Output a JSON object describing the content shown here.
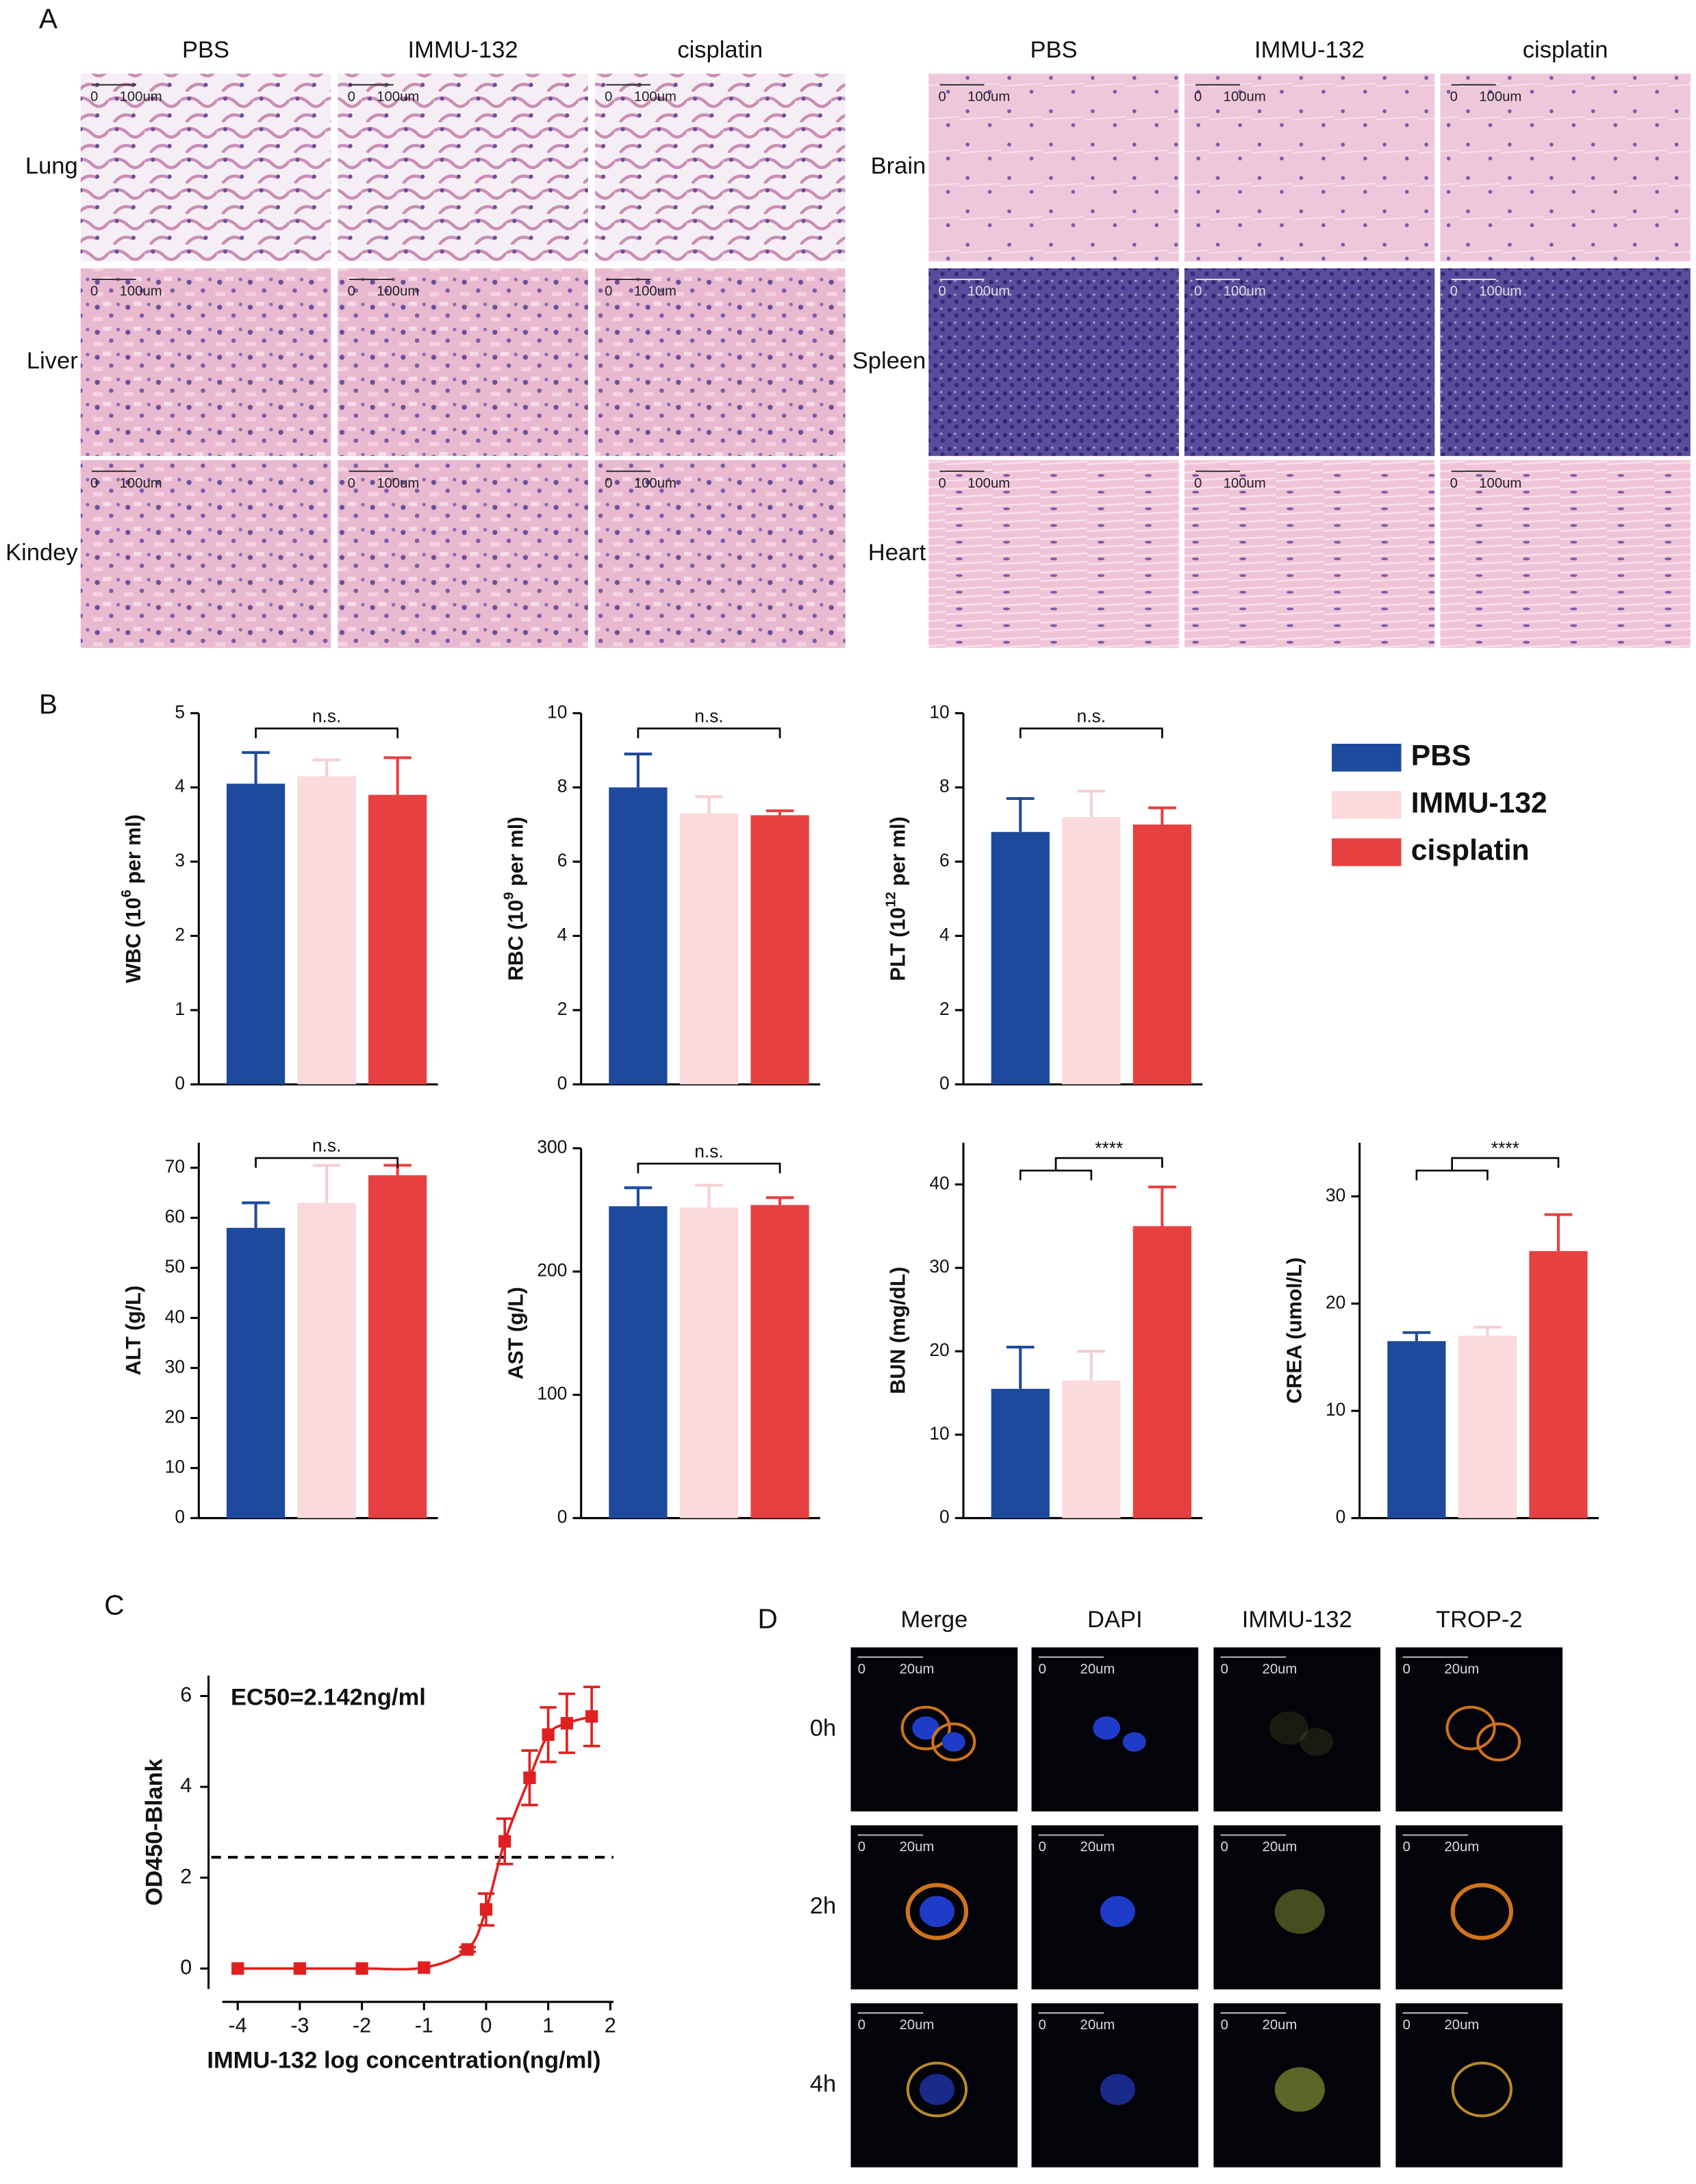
{
  "panel_labels": [
    "A",
    "B",
    "C",
    "D"
  ],
  "histology": {
    "groups": [
      {
        "columns": [
          "PBS",
          "IMMU-132",
          "cisplatin"
        ],
        "rows": [
          "Lung",
          "Liver",
          "Kindey"
        ]
      },
      {
        "columns": [
          "PBS",
          "IMMU-132",
          "cisplatin"
        ],
        "rows": [
          "Brain",
          "Spleen",
          "Heart"
        ]
      }
    ],
    "scale_zero": "0",
    "scale_length": "100um"
  },
  "legend": [
    {
      "name": "PBS",
      "color": "#1d4a9c"
    },
    {
      "name": "IMMU-132",
      "color": "#fadadc"
    },
    {
      "name": "cisplatin",
      "color": "#e64040"
    }
  ],
  "chart_data": [
    {
      "type": "bar",
      "ylabel": [
        "WBC (10",
        "6",
        " per ml)"
      ],
      "values": [
        4.05,
        4.15,
        3.9
      ],
      "errors": [
        0.42,
        0.22,
        0.5
      ],
      "ylim": [
        0,
        5
      ],
      "yticks": [
        0,
        1,
        2,
        3,
        4,
        5
      ],
      "significance": "n.s.",
      "bracket": "first-vs-last"
    },
    {
      "type": "bar",
      "ylabel": [
        "RBC (10",
        "9",
        " per ml)"
      ],
      "values": [
        8.0,
        7.3,
        7.25
      ],
      "errors": [
        0.9,
        0.45,
        0.12
      ],
      "ylim": [
        0,
        10
      ],
      "yticks": [
        0,
        2,
        4,
        6,
        8,
        10
      ],
      "significance": "n.s.",
      "bracket": "first-vs-last"
    },
    {
      "type": "bar",
      "ylabel": [
        "PLT (10",
        "12",
        " per ml)"
      ],
      "values": [
        6.8,
        7.2,
        7.0
      ],
      "errors": [
        0.9,
        0.7,
        0.45
      ],
      "ylim": [
        0,
        10
      ],
      "yticks": [
        0,
        2,
        4,
        6,
        8,
        10
      ],
      "significance": "n.s.",
      "bracket": "first-vs-last"
    },
    {
      "type": "bar",
      "ylabel": [
        "ALT (g/L)"
      ],
      "values": [
        58,
        63,
        68.5
      ],
      "errors": [
        5,
        7.5,
        2
      ],
      "ylim": [
        0,
        75
      ],
      "yticks": [
        0,
        10,
        20,
        30,
        40,
        50,
        60,
        70
      ],
      "significance": "n.s.",
      "bracket": "first-vs-last"
    },
    {
      "type": "bar",
      "ylabel": [
        "AST (g/L)"
      ],
      "values": [
        253,
        252,
        254
      ],
      "errors": [
        15,
        18,
        6
      ],
      "ylim": [
        0,
        300
      ],
      "yticks": [
        0,
        100,
        200,
        300
      ],
      "significance": "n.s.",
      "bracket": "first-vs-last"
    },
    {
      "type": "bar",
      "ylabel": [
        "BUN (mg/dL)"
      ],
      "values": [
        15.5,
        16.5,
        35
      ],
      "errors": [
        5,
        3.5,
        4.7
      ],
      "ylim": [
        0,
        45
      ],
      "yticks": [
        0,
        10,
        20,
        30,
        40
      ],
      "significance": "****",
      "bracket": "group-vs-last"
    },
    {
      "type": "bar",
      "ylabel": [
        "CREA (umol/L)"
      ],
      "values": [
        16.5,
        17,
        24.9
      ],
      "errors": [
        0.8,
        0.8,
        3.4
      ],
      "ylim": [
        0,
        35
      ],
      "yticks": [
        0,
        10,
        20,
        30
      ],
      "significance": "****",
      "bracket": "group-vs-last"
    },
    {
      "type": "line",
      "x": [
        -4,
        -3,
        -2,
        -1,
        -0.3,
        0,
        0.3,
        0.7,
        1,
        1.3,
        1.7
      ],
      "values": [
        0,
        0,
        0,
        0.02,
        0.42,
        1.3,
        2.8,
        4.2,
        5.15,
        5.4,
        5.55
      ],
      "errors": [
        0,
        0,
        0,
        0,
        0.05,
        0.35,
        0.5,
        0.6,
        0.6,
        0.65,
        0.65
      ],
      "color": "#e02020",
      "xlim": [
        -4.25,
        2.05
      ],
      "xticks": [
        -4,
        -3,
        -2,
        -1,
        0,
        1,
        2
      ],
      "ylim": [
        -0.45,
        6.45
      ],
      "yticks": [
        0,
        2,
        4,
        6
      ],
      "xlabel": "IMMU-132 log concentration(ng/ml)",
      "ylabel": "OD450-Blank",
      "annotation": "EC50=2.142ng/ml",
      "reference_line": 2.45
    }
  ],
  "microscopy": {
    "columns": [
      "Merge",
      "DAPI",
      "IMMU-132",
      "TROP-2"
    ],
    "rows": [
      "0h",
      "2h",
      "4h"
    ],
    "scale_zero": "0",
    "scale_length": "20um"
  }
}
